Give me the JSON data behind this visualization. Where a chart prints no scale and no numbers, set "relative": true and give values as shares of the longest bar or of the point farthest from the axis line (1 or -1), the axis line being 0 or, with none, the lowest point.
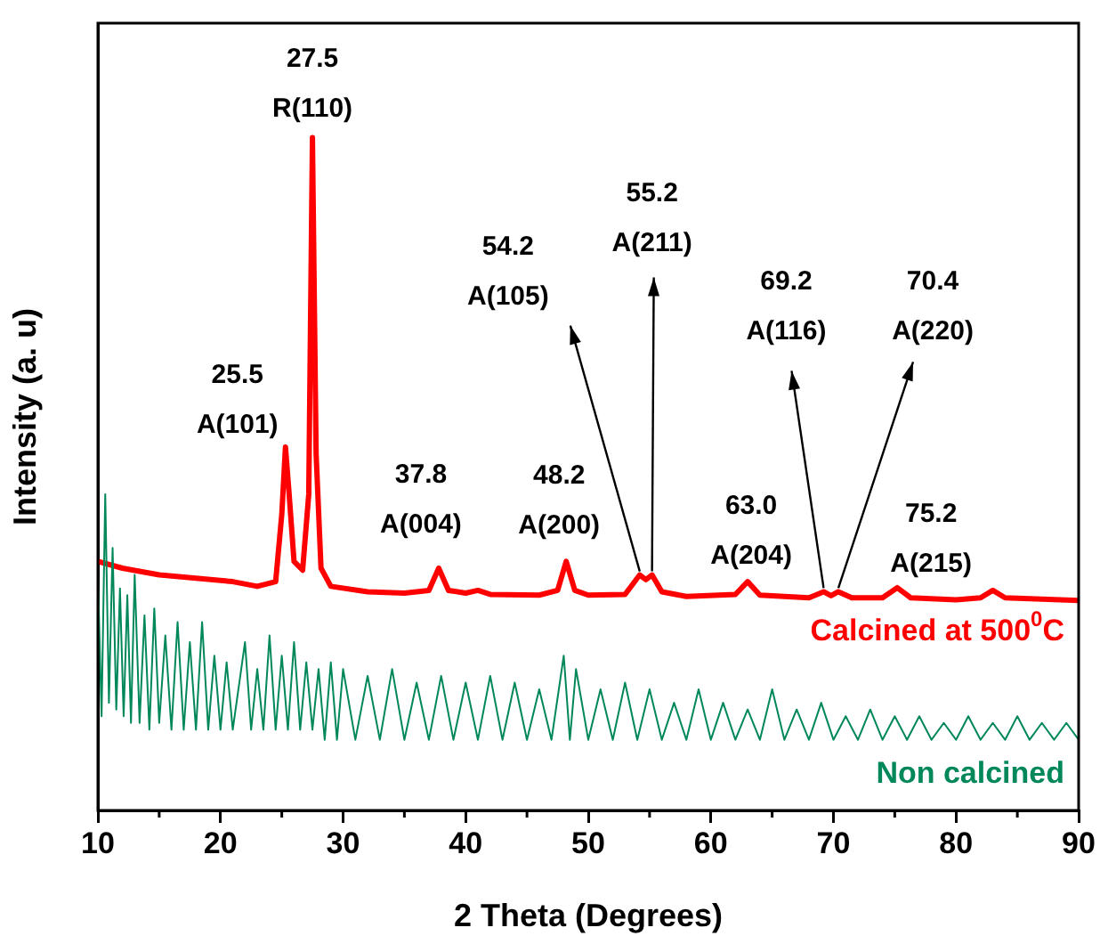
{
  "chart_data": {
    "type": "line",
    "relative": true,
    "xlabel": "2 Theta (Degrees)",
    "ylabel": "Intensity (a. u)",
    "xlim": [
      10,
      90
    ],
    "xticks": [
      10,
      20,
      30,
      40,
      50,
      60,
      70,
      80,
      90
    ],
    "grid": false,
    "legend": false,
    "marker": "none",
    "line_style": "solid",
    "series": [
      {
        "name": "Calcined at 500$^{0}$C",
        "color": "#ff0000",
        "x": [
          10,
          12,
          15,
          18,
          21,
          23,
          24.5,
          25,
          25.3,
          25.6,
          26,
          26.7,
          27.2,
          27.5,
          27.8,
          28.2,
          29,
          32,
          35,
          37,
          37.8,
          38.6,
          40,
          41,
          42,
          46,
          47.5,
          48.2,
          48.9,
          50,
          53,
          54.2,
          54.7,
          55.2,
          56,
          58,
          62,
          63,
          64,
          68,
          69.2,
          69.8,
          70.4,
          71.5,
          74,
          75.2,
          76.3,
          80,
          82,
          83,
          84,
          90
        ],
        "values": [
          0.37,
          0.36,
          0.35,
          0.345,
          0.34,
          0.333,
          0.34,
          0.44,
          0.54,
          0.47,
          0.37,
          0.357,
          0.47,
          1,
          0.53,
          0.36,
          0.333,
          0.325,
          0.323,
          0.327,
          0.36,
          0.327,
          0.323,
          0.327,
          0.321,
          0.32,
          0.327,
          0.37,
          0.327,
          0.32,
          0.321,
          0.35,
          0.343,
          0.35,
          0.325,
          0.318,
          0.321,
          0.34,
          0.32,
          0.316,
          0.325,
          0.319,
          0.325,
          0.316,
          0.316,
          0.331,
          0.316,
          0.313,
          0.316,
          0.327,
          0.316,
          0.312
        ]
      },
      {
        "name": "Non calcined",
        "color": "#00875a",
        "x": [
          10,
          10.3,
          10.6,
          10.9,
          11.2,
          11.5,
          11.8,
          12.1,
          12.4,
          12.7,
          13,
          13.4,
          13.8,
          14.2,
          14.6,
          15,
          15.5,
          16,
          16.5,
          17,
          17.5,
          18,
          18.5,
          19,
          19.5,
          20,
          20.5,
          21,
          22,
          22.5,
          23,
          23.5,
          24,
          24.5,
          25,
          25.5,
          26,
          26.5,
          27,
          27.5,
          28,
          28.5,
          29,
          29.5,
          30,
          31,
          32,
          33,
          34,
          35,
          36,
          37,
          38,
          39,
          40,
          41,
          42,
          43,
          44,
          45,
          46,
          47,
          48,
          48.5,
          49,
          50,
          51,
          52,
          53,
          54,
          55,
          56,
          57,
          58,
          59,
          60,
          61,
          62,
          63,
          64,
          65,
          66,
          67,
          68,
          69,
          70,
          71,
          72,
          73,
          74,
          75,
          76,
          77,
          78,
          79,
          80,
          81,
          82,
          83,
          84,
          85,
          86,
          87,
          88,
          89,
          90
        ],
        "values": [
          0.35,
          0.14,
          0.47,
          0.16,
          0.39,
          0.15,
          0.33,
          0.14,
          0.32,
          0.13,
          0.35,
          0.13,
          0.29,
          0.12,
          0.3,
          0.13,
          0.26,
          0.12,
          0.28,
          0.12,
          0.25,
          0.12,
          0.28,
          0.12,
          0.23,
          0.12,
          0.22,
          0.12,
          0.25,
          0.12,
          0.21,
          0.12,
          0.26,
          0.12,
          0.23,
          0.12,
          0.25,
          0.12,
          0.22,
          0.12,
          0.21,
          0.105,
          0.22,
          0.105,
          0.21,
          0.105,
          0.2,
          0.105,
          0.21,
          0.105,
          0.19,
          0.105,
          0.2,
          0.105,
          0.19,
          0.105,
          0.2,
          0.105,
          0.19,
          0.105,
          0.18,
          0.105,
          0.23,
          0.105,
          0.21,
          0.105,
          0.18,
          0.105,
          0.19,
          0.105,
          0.18,
          0.105,
          0.16,
          0.105,
          0.18,
          0.105,
          0.16,
          0.105,
          0.15,
          0.105,
          0.18,
          0.105,
          0.15,
          0.105,
          0.16,
          0.105,
          0.14,
          0.105,
          0.15,
          0.105,
          0.14,
          0.105,
          0.14,
          0.105,
          0.13,
          0.105,
          0.14,
          0.105,
          0.13,
          0.105,
          0.14,
          0.105,
          0.13,
          0.105,
          0.13,
          0.105
        ]
      }
    ],
    "annotations": [
      {
        "text": "25.5\nA(101)",
        "x": 25.3,
        "y": 0.54
      },
      {
        "text": "27.5\nR(110)",
        "x": 27.5,
        "y": 1
      },
      {
        "text": "37.8\nA(004)",
        "x": 37.8,
        "y": 0.36
      },
      {
        "text": "48.2\nA(200)",
        "x": 48.2,
        "y": 0.37
      },
      {
        "text": "54.2\nA(105)",
        "x": 54.2,
        "y": 0.35
      },
      {
        "text": "55.2\nA(211)",
        "x": 55.2,
        "y": 0.35
      },
      {
        "text": "63.0\nA(204)",
        "x": 63,
        "y": 0.34
      },
      {
        "text": "69.2\nA(116)",
        "x": 69.2,
        "y": 0.325
      },
      {
        "text": "70.4\nA(220)",
        "x": 70.4,
        "y": 0.325
      },
      {
        "text": "75.2\nA(215)",
        "x": 75.2,
        "y": 0.331
      }
    ]
  }
}
